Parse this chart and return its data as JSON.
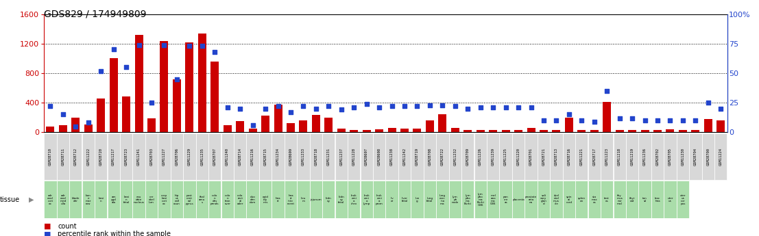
{
  "title": "GDS829 / 174949809",
  "samples": [
    "GSM28710",
    "GSM28711",
    "GSM28712",
    "GSM11222",
    "GSM28720",
    "GSM11217",
    "GSM28723",
    "GSM11241",
    "GSM28703",
    "GSM11227",
    "GSM28706",
    "GSM11229",
    "GSM11235",
    "GSM28707",
    "GSM11240",
    "GSM28714",
    "GSM11216",
    "GSM28715",
    "GSM11234",
    "GSM28699",
    "GSM11233",
    "GSM28718",
    "GSM11231",
    "GSM11237",
    "GSM11228",
    "GSM28697",
    "GSM28698",
    "GSM11238",
    "GSM11242",
    "GSM28719",
    "GSM28708",
    "GSM28722",
    "GSM11232",
    "GSM28709",
    "GSM11226",
    "GSM11239",
    "GSM11225",
    "GSM11220",
    "GSM28701",
    "GSM28721",
    "GSM28713",
    "GSM28716",
    "GSM11221",
    "GSM28717",
    "GSM11223",
    "GSM11218",
    "GSM11219",
    "GSM11236",
    "GSM28702",
    "GSM28705",
    "GSM11230",
    "GSM28704",
    "GSM28700",
    "GSM11224"
  ],
  "counts": [
    80,
    90,
    200,
    100,
    460,
    1000,
    480,
    1320,
    190,
    1240,
    720,
    1220,
    1340,
    960,
    90,
    150,
    45,
    220,
    370,
    120,
    160,
    230,
    200,
    50,
    30,
    30,
    40,
    60,
    50,
    50,
    160,
    240,
    60,
    30,
    30,
    30,
    30,
    30,
    60,
    30,
    30,
    200,
    30,
    30,
    410,
    30,
    30,
    30,
    30,
    40,
    30,
    30,
    180,
    160
  ],
  "percentiles": [
    22,
    15,
    5,
    8,
    52,
    70,
    55,
    74,
    25,
    74,
    45,
    73,
    73,
    68,
    21,
    20,
    6,
    20,
    22,
    17,
    22,
    20,
    22,
    19,
    21,
    24,
    21,
    22,
    22,
    22,
    23,
    23,
    22,
    20,
    21,
    21,
    21,
    21,
    21,
    10,
    10,
    15,
    10,
    9,
    35,
    12,
    12,
    10,
    10,
    10,
    10,
    10,
    25,
    20
  ],
  "tissues": [
    "adr\nenal\ncort\nex",
    "adr\nenal\nmed\nulla",
    "blade\nder",
    "bon\ne\nmar\nrow",
    "brai\nn",
    "am\nygd\nala",
    "brai\nn\nfetal",
    "cau\ndate\nnucleus",
    "cer\nebel\nlum",
    "corp\nbrai\ncort\nex",
    "hip\nus\ncall\nosun",
    "post\ncent\nral\npyrus",
    "thal\namu\ns",
    "colo\nn\ndes\npends",
    "colo\nn\ntran\nsver",
    "colo\nrect\nal\nader",
    "duo\nden\ndum",
    "epid\nidy\nmis",
    "hea\nrt",
    "hea\nrt\ninte\nrvent",
    "ileu\nm",
    "jejunum",
    "kidn\ney",
    "kidn\ney\nfetal",
    "leuk\nemi\na\nchro",
    "leuk\nemi\na\nlymp",
    "leuk\nemi\na\nprom",
    "liv\ner",
    "liver\nfetal",
    "lun\ng",
    "lung\nfetal",
    "lung\ncarc\nino\nma",
    "lym\nph\nnode",
    "lym\npho\nma\nBurki",
    "lym\npho\nma\nBurki\nG36",
    "mel\nano\nma\nG36",
    "pan\ncre\nas",
    "placenta",
    "prostate\nreta\nna",
    "sali\nvary\nglan\nd",
    "skel\netal\nmus\ncle",
    "spin\nal\ncord",
    "splen\nen",
    "sto\nmac\nes",
    "test\nes",
    "thy\nmus\nnor\nmal",
    "thyr\noid",
    "ton\nsil",
    "trac\nhea",
    "uter\nus",
    "uter\nus\ncor\npus"
  ],
  "ylim_left": [
    0,
    1600
  ],
  "ylim_right": [
    0,
    100
  ],
  "bar_color": "#cc0000",
  "dot_color": "#2244cc",
  "left_axis_color": "#cc0000",
  "right_axis_color": "#2244cc",
  "left_yticks": [
    0,
    400,
    800,
    1200,
    1600
  ],
  "right_yticks": [
    0,
    25,
    50,
    75,
    100
  ],
  "sample_box_color": "#d8d8d8",
  "tissue_box_color": "#aaddaa",
  "bg_color": "#ffffff"
}
